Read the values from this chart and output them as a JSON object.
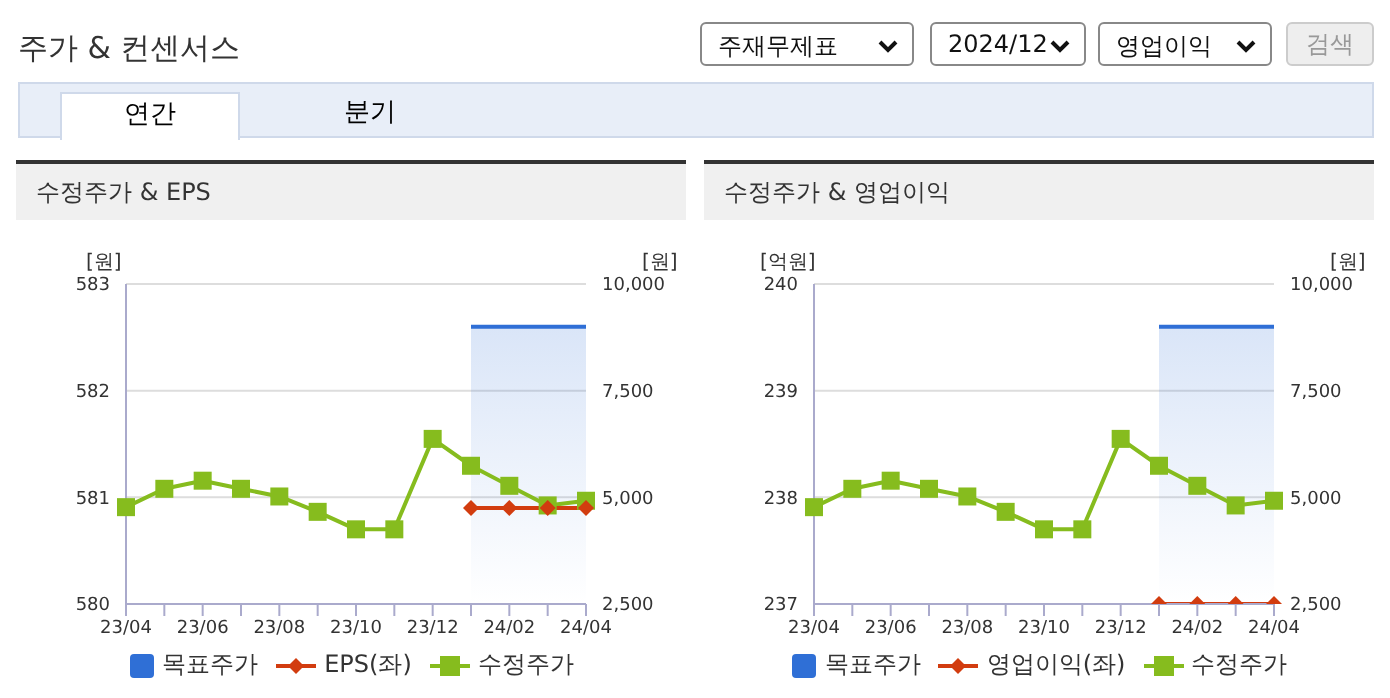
{
  "chart_data": [
    {
      "type": "other",
      "title": "주가 & 컨센서스",
      "annotations": [
        "주재무제표",
        "2024/12",
        "영업이익",
        "검색",
        "연간",
        "분기"
      ]
    },
    {
      "type": "line",
      "title": "수정주가 & EPS",
      "ylabel": "[원]",
      "y2label": "[원]",
      "categories": [
        "23/04",
        null,
        "23/06",
        null,
        "23/08",
        null,
        "23/10",
        null,
        "23/12",
        null,
        "24/02",
        null,
        "24/04"
      ],
      "series": [
        {
          "name": "목표주가",
          "type": "area",
          "color": "#2f6fd6",
          "axis": "y2",
          "marker": "none",
          "values": [
            null,
            null,
            null,
            null,
            null,
            null,
            null,
            null,
            null,
            9000,
            9000,
            9000,
            9000
          ]
        },
        {
          "name": "EPS(좌)",
          "color": "#d23c0f",
          "marker": "diamond",
          "values": [
            null,
            null,
            null,
            null,
            null,
            null,
            null,
            null,
            null,
            580.9,
            580.9,
            580.9,
            580.9
          ]
        },
        {
          "name": "수정주가",
          "color": "#86bc1e",
          "axis": "y2",
          "marker": "square",
          "values": [
            4770,
            5200,
            5390,
            5200,
            5020,
            4660,
            4250,
            4250,
            6370,
            5740,
            5270,
            4810,
            4920
          ]
        }
      ],
      "ylim": [
        580,
        583
      ],
      "yticks": [
        580,
        581,
        582,
        583
      ],
      "y2lim": [
        2500,
        10000
      ],
      "y2ticks": [
        {
          "value": 2500,
          "label": "2,500"
        },
        {
          "value": 5000,
          "label": "5,000"
        },
        {
          "value": 7500,
          "label": "7,500"
        },
        {
          "value": 10000,
          "label": "10,000"
        }
      ],
      "grid": "y",
      "legend": "bottom",
      "line_style": "solid"
    },
    {
      "type": "line",
      "title": "수정주가 & 영업이익",
      "ylabel": "[억원]",
      "y2label": "[원]",
      "categories": [
        "23/04",
        null,
        "23/06",
        null,
        "23/08",
        null,
        "23/10",
        null,
        "23/12",
        null,
        "24/02",
        null,
        "24/04"
      ],
      "series": [
        {
          "name": "목표주가",
          "type": "area",
          "color": "#2f6fd6",
          "axis": "y2",
          "marker": "none",
          "values": [
            null,
            null,
            null,
            null,
            null,
            null,
            null,
            null,
            null,
            9000,
            9000,
            9000,
            9000
          ]
        },
        {
          "name": "영업이익(좌)",
          "color": "#d23c0f",
          "marker": "diamond",
          "values": [
            null,
            null,
            null,
            null,
            null,
            null,
            null,
            null,
            null,
            237,
            237,
            237,
            237
          ]
        },
        {
          "name": "수정주가",
          "color": "#86bc1e",
          "axis": "y2",
          "marker": "square",
          "values": [
            4770,
            5200,
            5390,
            5200,
            5020,
            4660,
            4250,
            4250,
            6370,
            5740,
            5270,
            4810,
            4920
          ]
        }
      ],
      "ylim": [
        237,
        240
      ],
      "yticks": [
        237,
        238,
        239,
        240
      ],
      "y2lim": [
        2500,
        10000
      ],
      "y2ticks": [
        {
          "value": 2500,
          "label": "2,500"
        },
        {
          "value": 5000,
          "label": "5,000"
        },
        {
          "value": 7500,
          "label": "7,500"
        },
        {
          "value": 10000,
          "label": "10,000"
        }
      ],
      "grid": "y",
      "legend": "bottom",
      "line_style": "solid"
    }
  ]
}
